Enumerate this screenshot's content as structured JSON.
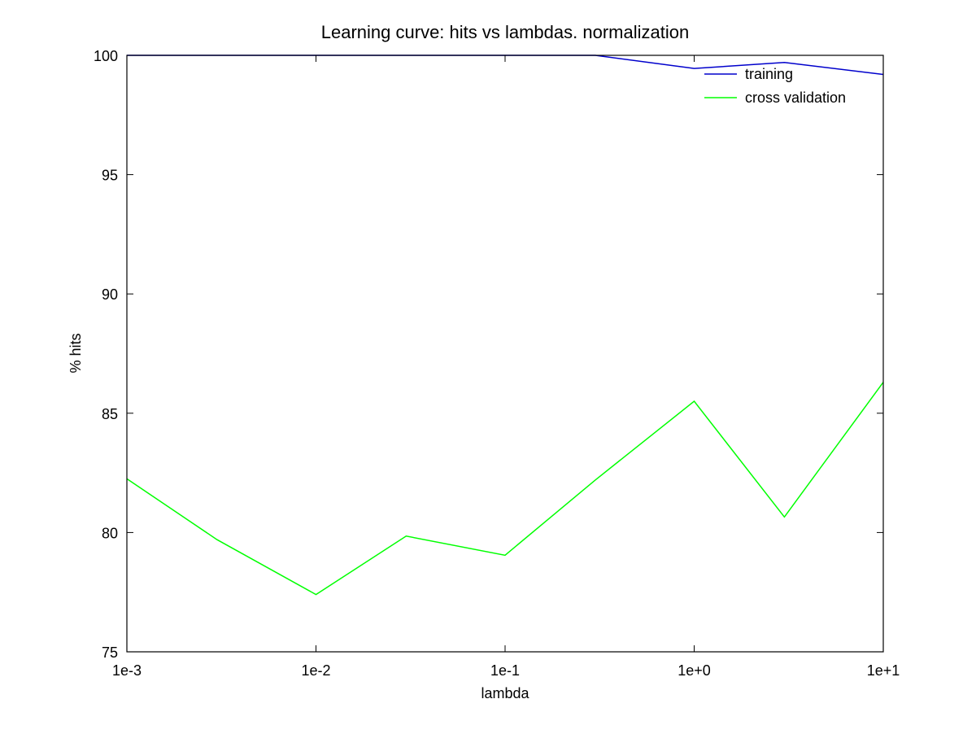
{
  "chart_data": {
    "type": "line",
    "title": "Learning curve: hits vs lambdas. normalization",
    "xlabel": "lambda",
    "ylabel": "% hits",
    "x_scale": "log",
    "xlim": [
      0.001,
      10
    ],
    "ylim": [
      75,
      100
    ],
    "x_ticks": [
      {
        "value": 0.001,
        "label": "1e-3"
      },
      {
        "value": 0.01,
        "label": "1e-2"
      },
      {
        "value": 0.1,
        "label": "1e-1"
      },
      {
        "value": 1,
        "label": "1e+0"
      },
      {
        "value": 10,
        "label": "1e+1"
      }
    ],
    "y_ticks": [
      {
        "value": 75,
        "label": "75"
      },
      {
        "value": 80,
        "label": "80"
      },
      {
        "value": 85,
        "label": "85"
      },
      {
        "value": 90,
        "label": "90"
      },
      {
        "value": 95,
        "label": "95"
      },
      {
        "value": 100,
        "label": "100"
      }
    ],
    "x": [
      0.001,
      0.003,
      0.01,
      0.03,
      0.1,
      0.3,
      1,
      3,
      10
    ],
    "series": [
      {
        "name": "training",
        "color": "#0000cc",
        "values": [
          100,
          100,
          100,
          100,
          100,
          100,
          99.45,
          99.7,
          99.2
        ]
      },
      {
        "name": "cross validation",
        "color": "#00ff00",
        "values": [
          82.25,
          79.7,
          77.4,
          79.85,
          79.05,
          82.2,
          85.5,
          80.65,
          86.3
        ]
      }
    ],
    "legend_position": "top-right",
    "grid": false
  }
}
